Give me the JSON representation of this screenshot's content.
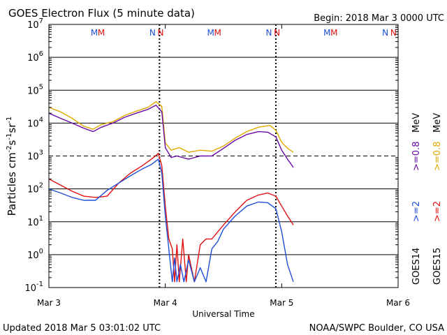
{
  "header": {
    "title": "GOES Electron Flux (5 minute data)",
    "begin": "Begin: 2018 Mar 3 0000 UTC"
  },
  "footer": {
    "updated": "Updated 2018 Mar  5 03:01:02 UTC",
    "credit": "NOAA/SWPC Boulder, CO USA"
  },
  "legend": {
    "goes14": "GOES14",
    "goes15": "GOES15",
    "g14_e2": ">=2",
    "g14_e08": ">=0.8",
    "g15_e2": ">=2",
    "g15_e08": ">=0.8",
    "unit": "MeV"
  },
  "markers": {
    "m": "M",
    "n": "N"
  },
  "colors": {
    "g14_e2": "#1f4fd8",
    "g14_e08": "#6a0aa8",
    "g15_e2": "#e01010",
    "g15_e08": "#e0a800",
    "m_blue": "#1f4fd8",
    "m_red": "#e01010"
  },
  "chart_data": {
    "type": "line",
    "title": "GOES Electron Flux (5 minute data)",
    "xlabel": "Universal Time",
    "ylabel": "Particles cm-2s-1sr-1",
    "ylabel_parts": {
      "main": "Particles cm",
      "exp1": "-2",
      "mid1": "s",
      "exp2": "-1",
      "mid2": "sr",
      "exp3": "-1"
    },
    "xlim": [
      0,
      3
    ],
    "x_ticks": [
      {
        "x": 0,
        "label": "Mar 3"
      },
      {
        "x": 1,
        "label": "Mar 4"
      },
      {
        "x": 2,
        "label": "Mar 5"
      },
      {
        "x": 3,
        "label": "Mar 6"
      }
    ],
    "y_scale": "log",
    "ylim_exp": [
      -1,
      7
    ],
    "y_ticks": [
      {
        "exp": -1,
        "label": "10",
        "sup": "-1"
      },
      {
        "exp": 0,
        "label": "10",
        "sup": "0"
      },
      {
        "exp": 1,
        "label": "10",
        "sup": "1"
      },
      {
        "exp": 2,
        "label": "10",
        "sup": "2"
      },
      {
        "exp": 3,
        "label": "10",
        "sup": "3"
      },
      {
        "exp": 4,
        "label": "10",
        "sup": "4"
      },
      {
        "exp": 5,
        "label": "10",
        "sup": "5"
      },
      {
        "exp": 6,
        "label": "10",
        "sup": "6"
      },
      {
        "exp": 7,
        "label": "10",
        "sup": "7"
      }
    ],
    "threshold": 1000,
    "day_markers": [
      0.95,
      1.95
    ],
    "mn_markers": [
      {
        "x": 0.39,
        "letter": "M",
        "color": "#1f4fd8"
      },
      {
        "x": 0.45,
        "letter": "M",
        "color": "#e01010"
      },
      {
        "x": 0.89,
        "letter": "N",
        "color": "#1f4fd8"
      },
      {
        "x": 0.96,
        "letter": "N",
        "color": "#e01010"
      },
      {
        "x": 1.39,
        "letter": "M",
        "color": "#1f4fd8"
      },
      {
        "x": 1.45,
        "letter": "M",
        "color": "#e01010"
      },
      {
        "x": 1.89,
        "letter": "N",
        "color": "#1f4fd8"
      },
      {
        "x": 1.96,
        "letter": "N",
        "color": "#e01010"
      },
      {
        "x": 2.39,
        "letter": "M",
        "color": "#1f4fd8"
      },
      {
        "x": 2.45,
        "letter": "M",
        "color": "#e01010"
      },
      {
        "x": 2.89,
        "letter": "N",
        "color": "#1f4fd8"
      },
      {
        "x": 2.96,
        "letter": "N",
        "color": "#e01010"
      }
    ],
    "series": [
      {
        "key": "g15_e08",
        "color": "#e0a800",
        "points": [
          [
            0,
            30000
          ],
          [
            0.1,
            22000
          ],
          [
            0.2,
            14000
          ],
          [
            0.3,
            8000
          ],
          [
            0.38,
            6500
          ],
          [
            0.45,
            9000
          ],
          [
            0.55,
            11000
          ],
          [
            0.65,
            17000
          ],
          [
            0.75,
            23000
          ],
          [
            0.85,
            30000
          ],
          [
            0.92,
            45000
          ],
          [
            0.97,
            32000
          ],
          [
            1.0,
            2500
          ],
          [
            1.05,
            1500
          ],
          [
            1.12,
            1800
          ],
          [
            1.2,
            1300
          ],
          [
            1.3,
            1500
          ],
          [
            1.4,
            1400
          ],
          [
            1.5,
            2000
          ],
          [
            1.6,
            3500
          ],
          [
            1.7,
            5500
          ],
          [
            1.8,
            7500
          ],
          [
            1.9,
            8500
          ],
          [
            1.95,
            6000
          ],
          [
            2.0,
            2600
          ],
          [
            2.05,
            1700
          ],
          [
            2.1,
            1300
          ]
        ]
      },
      {
        "key": "g14_e08",
        "color": "#6a0aa8",
        "points": [
          [
            0,
            20000
          ],
          [
            0.1,
            14000
          ],
          [
            0.2,
            10000
          ],
          [
            0.3,
            7000
          ],
          [
            0.38,
            5500
          ],
          [
            0.45,
            7500
          ],
          [
            0.55,
            10000
          ],
          [
            0.65,
            15000
          ],
          [
            0.75,
            20000
          ],
          [
            0.85,
            26000
          ],
          [
            0.92,
            35000
          ],
          [
            0.97,
            22000
          ],
          [
            1.0,
            1800
          ],
          [
            1.05,
            900
          ],
          [
            1.1,
            1000
          ],
          [
            1.2,
            800
          ],
          [
            1.3,
            1000
          ],
          [
            1.4,
            1000
          ],
          [
            1.5,
            1700
          ],
          [
            1.6,
            3000
          ],
          [
            1.7,
            4500
          ],
          [
            1.8,
            5500
          ],
          [
            1.88,
            5300
          ],
          [
            1.95,
            3800
          ],
          [
            2.0,
            1500
          ],
          [
            2.05,
            800
          ],
          [
            2.1,
            450
          ]
        ]
      },
      {
        "key": "g15_e2",
        "color": "#e01010",
        "points": [
          [
            0,
            200
          ],
          [
            0.1,
            130
          ],
          [
            0.2,
            85
          ],
          [
            0.3,
            60
          ],
          [
            0.4,
            55
          ],
          [
            0.5,
            60
          ],
          [
            0.6,
            150
          ],
          [
            0.7,
            300
          ],
          [
            0.8,
            500
          ],
          [
            0.88,
            800
          ],
          [
            0.94,
            1200
          ],
          [
            0.97,
            500
          ],
          [
            1.0,
            30
          ],
          [
            1.03,
            3
          ],
          [
            1.06,
            1.5
          ],
          [
            1.08,
            0.15
          ],
          [
            1.1,
            2
          ],
          [
            1.12,
            0.15
          ],
          [
            1.15,
            3
          ],
          [
            1.18,
            0.15
          ],
          [
            1.2,
            1
          ],
          [
            1.25,
            0.15
          ],
          [
            1.3,
            2
          ],
          [
            1.35,
            3
          ],
          [
            1.4,
            3
          ],
          [
            1.5,
            8
          ],
          [
            1.6,
            20
          ],
          [
            1.7,
            45
          ],
          [
            1.8,
            65
          ],
          [
            1.88,
            75
          ],
          [
            1.95,
            60
          ],
          [
            2.0,
            30
          ],
          [
            2.05,
            15
          ],
          [
            2.1,
            8
          ]
        ]
      },
      {
        "key": "g14_e2",
        "color": "#1f4fd8",
        "points": [
          [
            0,
            100
          ],
          [
            0.1,
            75
          ],
          [
            0.2,
            55
          ],
          [
            0.3,
            45
          ],
          [
            0.4,
            45
          ],
          [
            0.5,
            90
          ],
          [
            0.6,
            150
          ],
          [
            0.7,
            250
          ],
          [
            0.8,
            400
          ],
          [
            0.88,
            550
          ],
          [
            0.94,
            800
          ],
          [
            0.97,
            300
          ],
          [
            1.0,
            15
          ],
          [
            1.03,
            1.5
          ],
          [
            1.06,
            0.15
          ],
          [
            1.08,
            0.8
          ],
          [
            1.1,
            0.15
          ],
          [
            1.13,
            0.5
          ],
          [
            1.16,
            0.15
          ],
          [
            1.2,
            0.7
          ],
          [
            1.25,
            0.15
          ],
          [
            1.3,
            0.4
          ],
          [
            1.35,
            0.15
          ],
          [
            1.4,
            1.5
          ],
          [
            1.45,
            2.5
          ],
          [
            1.5,
            6
          ],
          [
            1.6,
            15
          ],
          [
            1.7,
            30
          ],
          [
            1.8,
            40
          ],
          [
            1.88,
            38
          ],
          [
            1.95,
            25
          ],
          [
            2.0,
            5
          ],
          [
            2.05,
            0.5
          ],
          [
            2.1,
            0.15
          ]
        ]
      }
    ]
  }
}
